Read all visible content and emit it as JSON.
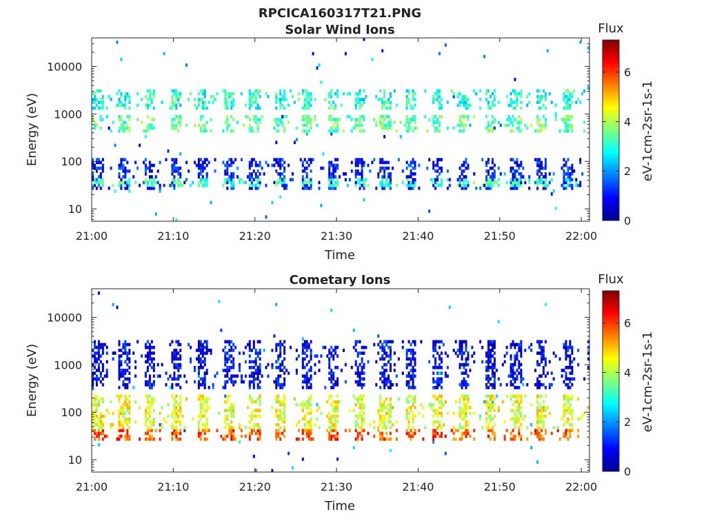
{
  "figure_title": "RPCICA160317T21.PNG",
  "chart_data": [
    {
      "type": "heatmap",
      "title": "Solar Wind Ions",
      "xlabel": "Time",
      "ylabel": "Energy (eV)",
      "x_ticks": [
        "21:00",
        "21:10",
        "21:20",
        "21:30",
        "21:40",
        "21:50",
        "22:00"
      ],
      "xlim": [
        "21:00",
        "22:01"
      ],
      "y_ticks": [
        10,
        100,
        1000,
        10000
      ],
      "y_tick_labels": [
        "10",
        "100",
        "1000",
        "10000"
      ],
      "ylim": [
        5.5,
        40000
      ],
      "y_scale": "log",
      "colorbar": {
        "title": "Flux",
        "label": "eV-1cm-2sr-1s-1",
        "ticks": [
          0,
          2,
          4,
          6
        ],
        "tick_labels": [
          "0",
          "2",
          "4",
          "6"
        ],
        "range": [
          0,
          7.3
        ]
      },
      "sweep_period_min": 3.2,
      "energy_bands": [
        {
          "energy_low": 25,
          "energy_high": 120,
          "flux": 1.0
        },
        {
          "energy_low": 28,
          "energy_high": 45,
          "flux": 3.2
        },
        {
          "energy_low": 400,
          "energy_high": 900,
          "flux": 3.4
        },
        {
          "energy_low": 1200,
          "energy_high": 3300,
          "flux": 3.0
        }
      ]
    },
    {
      "type": "heatmap",
      "title": "Cometary Ions",
      "xlabel": "Time",
      "ylabel": "Energy (eV)",
      "x_ticks": [
        "21:00",
        "21:10",
        "21:20",
        "21:30",
        "21:40",
        "21:50",
        "22:00"
      ],
      "xlim": [
        "21:00",
        "22:01"
      ],
      "y_ticks": [
        10,
        100,
        1000,
        10000
      ],
      "y_tick_labels": [
        "10",
        "100",
        "1000",
        "10000"
      ],
      "ylim": [
        5.5,
        40000
      ],
      "y_scale": "log",
      "colorbar": {
        "title": "Flux",
        "label": "eV-1cm-2sr-1s-1",
        "ticks": [
          0,
          2,
          4,
          6
        ],
        "tick_labels": [
          "0",
          "2",
          "4",
          "6"
        ],
        "range": [
          0,
          7.3
        ]
      },
      "sweep_period_min": 3.2,
      "energy_bands": [
        {
          "energy_low": 45,
          "energy_high": 220,
          "flux": 4.4
        },
        {
          "energy_low": 25,
          "energy_high": 45,
          "flux": 5.8
        },
        {
          "energy_low": 300,
          "energy_high": 3500,
          "flux": 0.8
        }
      ]
    }
  ]
}
